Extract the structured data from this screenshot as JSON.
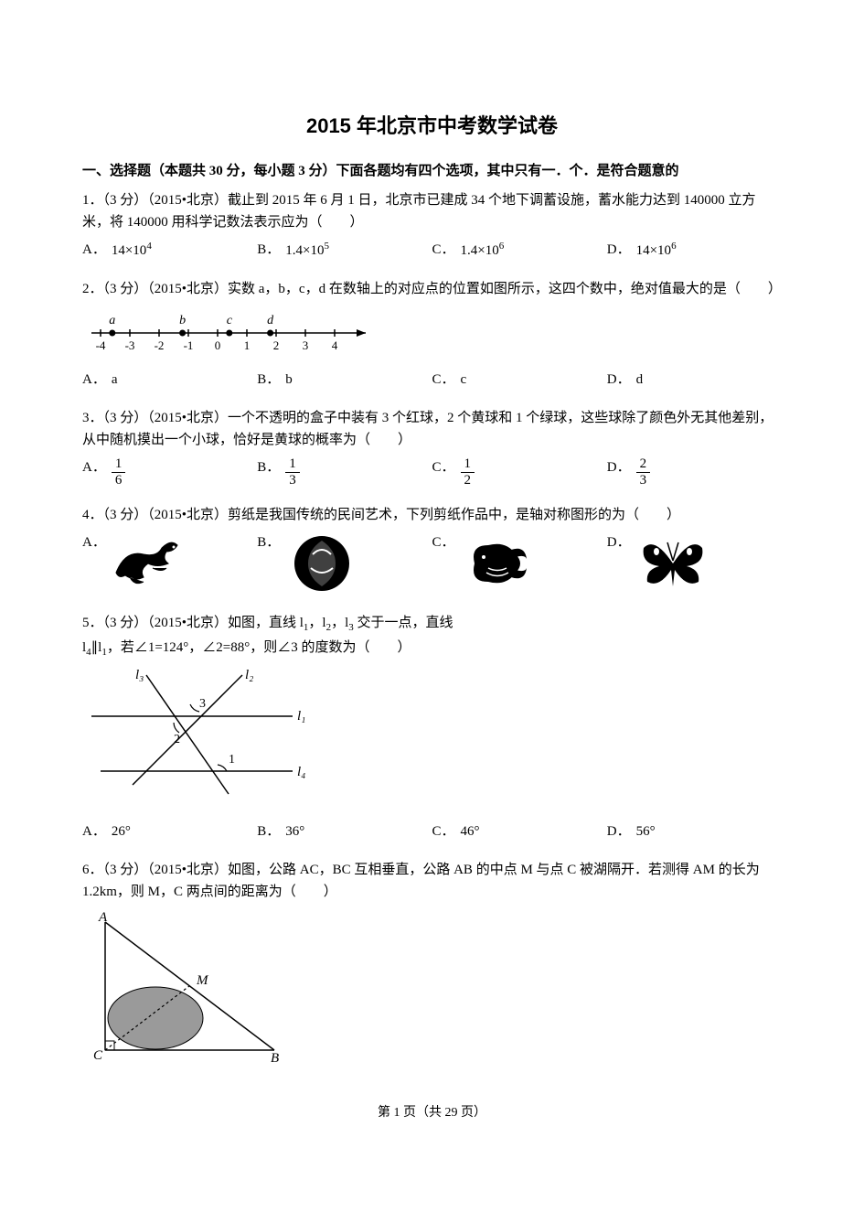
{
  "page": {
    "title": "2015 年北京市中考数学试卷",
    "section": "一、选择题（本题共 30 分，每小题 3 分）下面各题均有四个选项，其中只有一．个．是符合题意的",
    "footer": "第 1 页（共 29 页）"
  },
  "q1": {
    "text": "1．（3 分）（2015•北京）截止到 2015 年 6 月 1 日，北京市已建成 34 个地下调蓄设施，蓄水能力达到 140000 立方米，将 140000 用科学记数法表示应为（　　）",
    "A": "14×10",
    "A_exp": "4",
    "B": "1.4×10",
    "B_exp": "5",
    "C": "1.4×10",
    "C_exp": "6",
    "D": "14×10",
    "D_exp": "6"
  },
  "q2": {
    "text": "2．（3 分）（2015•北京）实数 a，b，c，d 在数轴上的对应点的位置如图所示，这四个数中，绝对值最大的是（　　）",
    "A": "a",
    "B": "b",
    "C": "c",
    "D": "d",
    "numline": {
      "ticks": [
        -4,
        -3,
        -2,
        -1,
        0,
        1,
        2,
        3,
        4
      ],
      "points": {
        "a": -3.6,
        "b": -1.2,
        "c": 0.4,
        "d": 1.8
      }
    }
  },
  "q3": {
    "text": "3．（3 分）（2015•北京）一个不透明的盒子中装有 3 个红球，2 个黄球和 1 个绿球，这些球除了颜色外无其他差别，从中随机摸出一个小球，恰好是黄球的概率为（　　）",
    "A": {
      "num": "1",
      "den": "6"
    },
    "B": {
      "num": "1",
      "den": "3"
    },
    "C": {
      "num": "1",
      "den": "2"
    },
    "D": {
      "num": "2",
      "den": "3"
    }
  },
  "q4": {
    "text": "4．（3 分）（2015•北京）剪纸是我国传统的民间艺术，下列剪纸作品中，是轴对称图形的为（　　）",
    "A": "",
    "B": "",
    "C": "",
    "D": ""
  },
  "q5": {
    "text_parts": [
      "5．（3 分）（2015•北京）如图，直线 l",
      "，l",
      "，l",
      " 交于一点，直线 l",
      "∥l",
      "，若∠1=124°，∠2=88°，则∠3 的度数为（　　）"
    ],
    "subs": [
      "1",
      "2",
      "3",
      "4",
      "1"
    ],
    "A": "26°",
    "B": "36°",
    "C": "46°",
    "D": "56°",
    "labels": {
      "l1": "l₁",
      "l2": "l₂",
      "l3": "l₃",
      "l4": "l₄",
      "a1": "1",
      "a2": "2",
      "a3": "3"
    }
  },
  "q6": {
    "text": "6．（3 分）（2015•北京）如图，公路 AC，BC 互相垂直，公路 AB 的中点 M 与点 C 被湖隔开．若测得 AM 的长为 1.2km，则 M，C 两点间的距离为（　　）",
    "labels": {
      "A": "A",
      "B": "B",
      "C": "C",
      "M": "M"
    }
  },
  "optLabels": {
    "A": "A．",
    "B": "B．",
    "C": "C．",
    "D": "D．"
  },
  "style": {
    "text_color": "#000000",
    "bg_color": "#ffffff",
    "fig_stroke": "#000000",
    "fig_fill_gray": "#9a9a9a",
    "title_fontsize": 22,
    "body_fontsize": 15
  }
}
